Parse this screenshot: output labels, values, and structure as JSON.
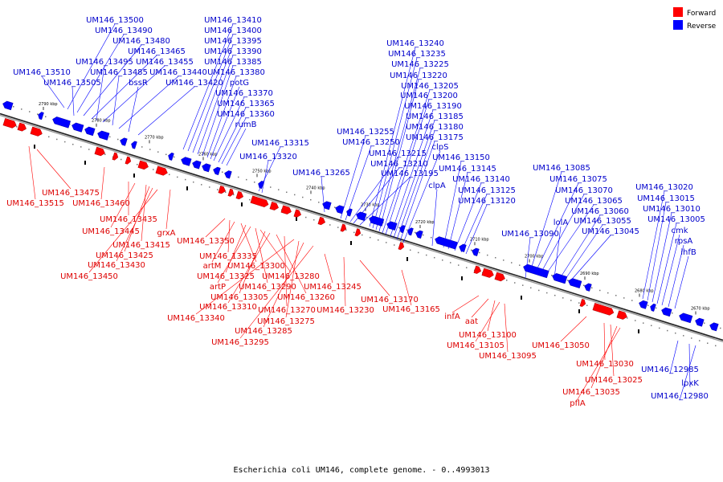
{
  "caption": "Escherichia coli UM146, complete genome. - 0..4993013",
  "legend": [
    {
      "label": "Forward",
      "color": "#ff0000"
    },
    {
      "label": "Reverse",
      "color": "#0000ff"
    }
  ],
  "colors": {
    "forward": "#ff0000",
    "reverse": "#0000ff",
    "forward_label": "#dd0000",
    "reverse_label": "#0000cc",
    "axis": "#888888"
  },
  "scale_ticks": [
    "2790 kbp",
    "2780 kbp",
    "2770 kbp",
    "2760 kbp",
    "2750 kbp",
    "2740 kbp",
    "2730 kbp",
    "2720 kbp",
    "2710 kbp",
    "2700 kbp",
    "2690 kbp",
    "2680 kbp",
    "2670 kbp"
  ],
  "reverse_labels": [
    "UM146_13500",
    "UM146_13490",
    "UM146_13480",
    "UM146_13465",
    "UM146_13495",
    "UM146_13455",
    "UM146_13510",
    "UM146_13485",
    "UM146_13440",
    "UM146_13505",
    "bssR",
    "UM146_13420",
    "UM146_13410",
    "UM146_13400",
    "UM146_13395",
    "UM146_13390",
    "UM146_13385",
    "UM146_13380",
    "potG",
    "UM146_13370",
    "UM146_13365",
    "UM146_13360",
    "rumB",
    "UM146_13315",
    "UM146_13320",
    "UM146_13265",
    "UM146_13240",
    "UM146_13235",
    "UM146_13225",
    "UM146_13220",
    "UM146_13205",
    "UM146_13200",
    "UM146_13190",
    "UM146_13185",
    "UM146_13180",
    "UM146_13175",
    "clpS",
    "UM146_13255",
    "UM146_13250",
    "UM146_13215",
    "UM146_13210",
    "UM146_13195",
    "UM146_13150",
    "UM146_13145",
    "UM146_13140",
    "clpA",
    "UM146_13125",
    "UM146_13120",
    "UM146_13085",
    "UM146_13075",
    "UM146_13070",
    "UM146_13065",
    "lolA",
    "UM146_13060",
    "UM146_13090",
    "UM146_13055",
    "UM146_13045",
    "UM146_13020",
    "UM146_13015",
    "UM146_13010",
    "UM146_13005",
    "cmk",
    "rpsA",
    "ihfB",
    "UM146_12985",
    "lpxK",
    "UM146_12980"
  ],
  "forward_labels": [
    "UM146_13475",
    "UM146_13515",
    "UM146_13460",
    "UM146_13435",
    "UM146_13445",
    "grxA",
    "UM146_13415",
    "UM146_13425",
    "UM146_13430",
    "UM146_13450",
    "UM146_13350",
    "UM146_13335",
    "artM",
    "UM146_13300",
    "UM146_13325",
    "artP",
    "UM146_13290",
    "UM146_13280",
    "UM146_13305",
    "UM146_13310",
    "UM146_13260",
    "UM146_13270",
    "UM146_13340",
    "UM146_13275",
    "UM146_13285",
    "UM146_13295",
    "UM146_13245",
    "UM146_13230",
    "UM146_13170",
    "UM146_13165",
    "infA",
    "aat",
    "UM146_13100",
    "UM146_13105",
    "UM146_13095",
    "UM146_13050",
    "UM146_13030",
    "UM146_13025",
    "UM146_13035",
    "pflA"
  ]
}
